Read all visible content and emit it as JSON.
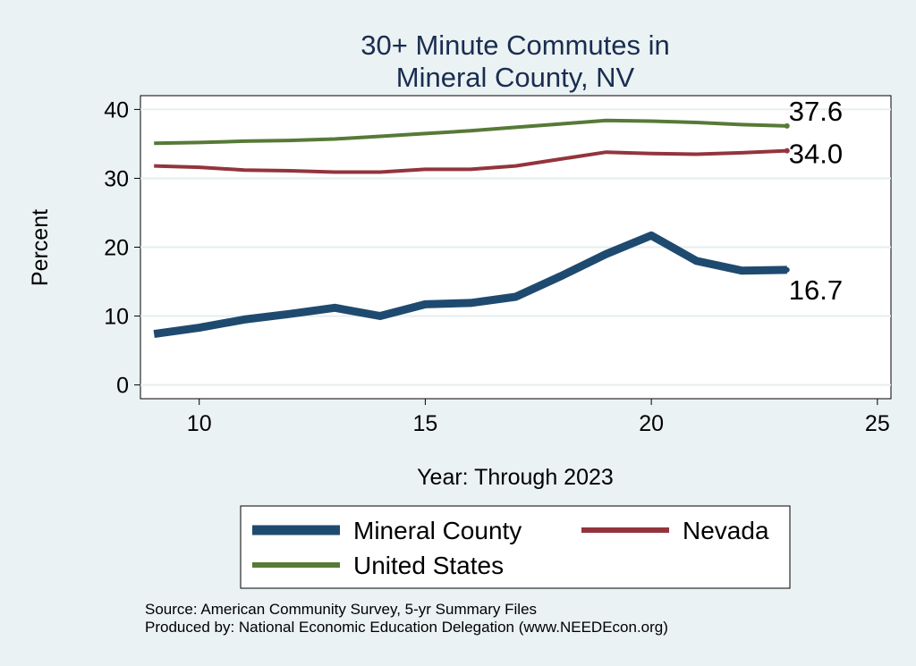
{
  "chart_data": {
    "type": "line",
    "title_lines": [
      "30+ Minute Commutes in",
      "Mineral County, NV"
    ],
    "xlabel": "Year: Through 2023",
    "ylabel": "Percent",
    "xlim": [
      8.7,
      25.3
    ],
    "ylim": [
      -2,
      42
    ],
    "xticks": [
      10,
      15,
      20,
      25
    ],
    "yticks": [
      0,
      10,
      20,
      30,
      40
    ],
    "grid": true,
    "legend_position": "bottom",
    "series": [
      {
        "name": "Mineral County",
        "color": "#1f4a70",
        "stroke": "thick",
        "x": [
          9,
          10,
          11,
          12,
          13,
          14,
          15,
          16,
          17,
          18,
          19,
          20,
          21,
          22,
          23
        ],
        "y": [
          7.4,
          8.3,
          9.5,
          10.3,
          11.2,
          10.0,
          11.7,
          11.9,
          12.8,
          15.8,
          19.0,
          21.7,
          18.0,
          16.6,
          16.7
        ],
        "end_label": "16.7"
      },
      {
        "name": "Nevada",
        "color": "#93343d",
        "stroke": "medium",
        "x": [
          9,
          10,
          11,
          12,
          13,
          14,
          15,
          16,
          17,
          18,
          19,
          20,
          21,
          22,
          23
        ],
        "y": [
          31.8,
          31.6,
          31.2,
          31.1,
          30.9,
          30.9,
          31.3,
          31.3,
          31.8,
          32.8,
          33.8,
          33.6,
          33.5,
          33.7,
          34.0
        ],
        "end_label": "34.0"
      },
      {
        "name": "United States",
        "color": "#567a37",
        "stroke": "medium",
        "x": [
          9,
          10,
          11,
          12,
          13,
          14,
          15,
          16,
          17,
          18,
          19,
          20,
          21,
          22,
          23
        ],
        "y": [
          35.1,
          35.2,
          35.4,
          35.5,
          35.7,
          36.1,
          36.5,
          36.9,
          37.4,
          37.9,
          38.4,
          38.3,
          38.1,
          37.8,
          37.6
        ],
        "end_label": "37.6"
      }
    ],
    "notes": [
      "Source: American Community Survey, 5-yr Summary Files",
      "Produced by: National Economic Education Delegation (www.NEEDEcon.org)"
    ]
  }
}
